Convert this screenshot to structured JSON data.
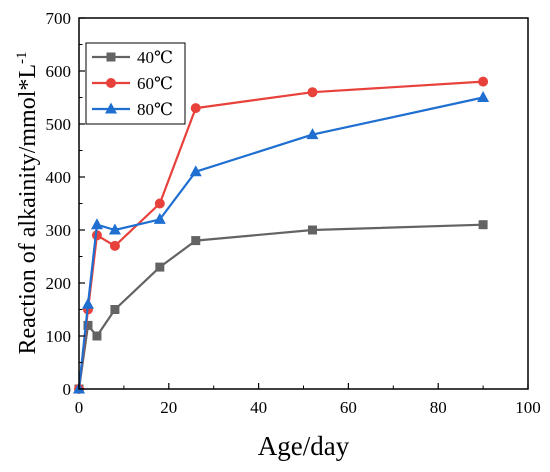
{
  "chart_data": {
    "type": "line",
    "xlabel": "Age/day",
    "ylabel": "Reaction of alkainity/mmol*L",
    "ylabel_superscript": "-1",
    "xlim": [
      0,
      100
    ],
    "ylim": [
      0,
      700
    ],
    "xticks": [
      "0",
      "20",
      "40",
      "60",
      "80",
      "100"
    ],
    "yticks": [
      "0",
      "100",
      "200",
      "300",
      "400",
      "500",
      "600",
      "700"
    ],
    "grid": false,
    "legend_position": "top-left",
    "series": [
      {
        "name": "40℃",
        "color": "#636363",
        "marker": "square",
        "x": [
          0,
          2,
          4,
          8,
          18,
          26,
          52,
          90
        ],
        "y": [
          0,
          120,
          100,
          150,
          230,
          280,
          300,
          310
        ]
      },
      {
        "name": "60℃",
        "color": "#e8413c",
        "marker": "circle",
        "x": [
          0,
          2,
          4,
          8,
          18,
          26,
          52,
          90
        ],
        "y": [
          0,
          150,
          290,
          270,
          350,
          530,
          560,
          580
        ]
      },
      {
        "name": "80℃",
        "color": "#1f6fd1",
        "marker": "triangle",
        "x": [
          0,
          2,
          4,
          8,
          18,
          26,
          52,
          90
        ],
        "y": [
          0,
          160,
          310,
          300,
          320,
          410,
          480,
          550
        ]
      }
    ]
  }
}
